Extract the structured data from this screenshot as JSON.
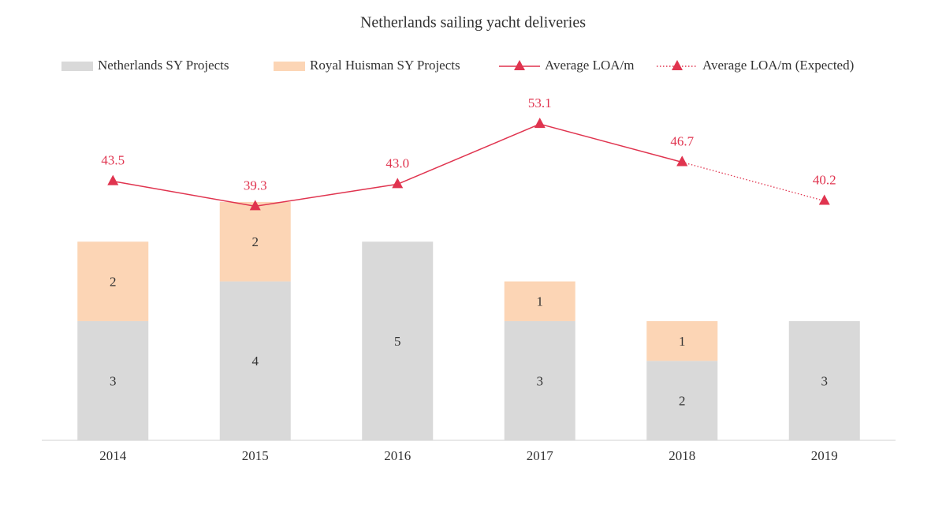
{
  "chart_data": {
    "type": "bar-line",
    "title": "Netherlands sailing yacht deliveries",
    "categories": [
      "2014",
      "2015",
      "2016",
      "2017",
      "2018",
      "2019"
    ],
    "ylim": [
      0,
      8.5
    ],
    "y2lim": [
      0,
      56.7
    ],
    "series": [
      {
        "name": "Netherlands SY Projects",
        "type": "bar",
        "color": "#d9d9d9",
        "values": [
          3,
          4,
          5,
          3,
          2,
          3
        ]
      },
      {
        "name": "Royal Huisman SY Projects",
        "type": "bar",
        "color": "#fcd5b5",
        "values": [
          2,
          2,
          null,
          1,
          1,
          null
        ]
      },
      {
        "name": "Average LOA/m",
        "type": "line",
        "axis": "y2",
        "color": "#e0344f",
        "line_style": "solid",
        "values": [
          43.5,
          39.3,
          43.0,
          53.1,
          46.7,
          null
        ],
        "value_labels": [
          "43.5",
          "39.3",
          "43.0",
          "53.1",
          "46.7",
          null
        ]
      },
      {
        "name": "Average LOA/m (Expected)",
        "type": "line",
        "axis": "y2",
        "color": "#e0344f",
        "line_style": "dotted",
        "values": [
          null,
          null,
          null,
          null,
          46.7,
          40.2
        ]
      }
    ],
    "legend": "top"
  }
}
